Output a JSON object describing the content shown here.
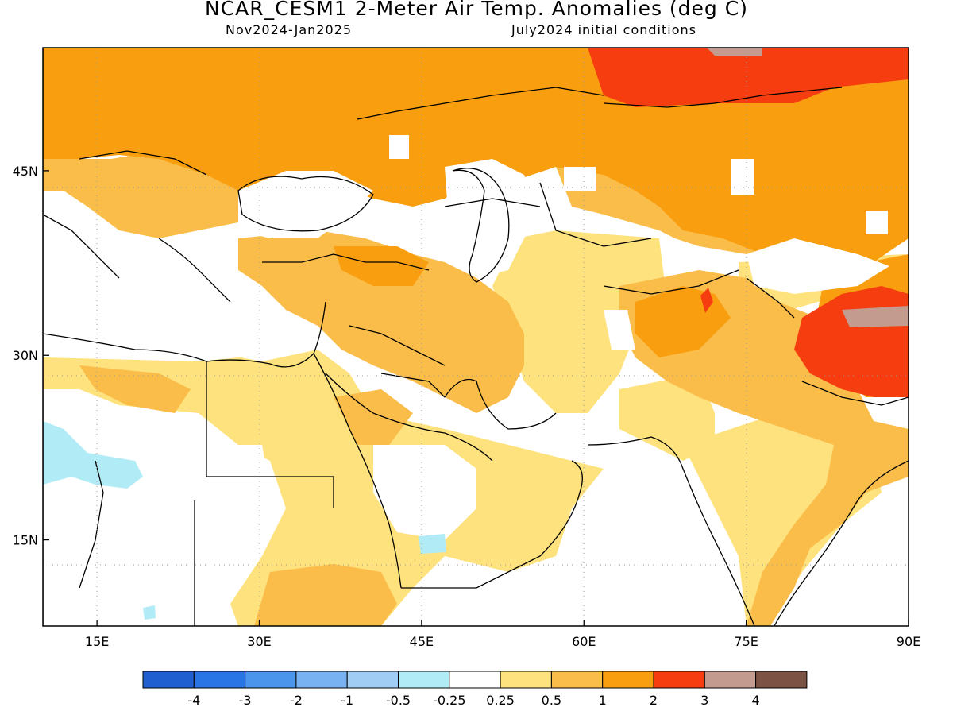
{
  "header": {
    "title": "NCAR_CESM1 2-Meter Air Temp. Anomalies (deg C)",
    "period": "Nov2024-Jan2025",
    "init": "July2024 initial conditions"
  },
  "map": {
    "lon_range": [
      10,
      90
    ],
    "lat_range": [
      8,
      55
    ],
    "lat_ticks": [
      {
        "value": 45,
        "label": "45N"
      },
      {
        "value": 30,
        "label": "30N"
      },
      {
        "value": 15,
        "label": "15N"
      }
    ],
    "lon_ticks": [
      {
        "value": 15,
        "label": "15E"
      },
      {
        "value": 30,
        "label": "30E"
      },
      {
        "value": 45,
        "label": "45E"
      },
      {
        "value": 60,
        "label": "60E"
      },
      {
        "value": 75,
        "label": "75E"
      },
      {
        "value": 90,
        "label": "90E"
      }
    ],
    "grid": "dotted"
  },
  "legend": {
    "colors": [
      "#1f5fcf",
      "#2a75e6",
      "#4b95ec",
      "#78b2f2",
      "#9fcdf4",
      "#b1ecf6",
      "#ffffff",
      "#fee27e",
      "#fbbd4a",
      "#f89e0f",
      "#f63d10",
      "#c39b8f",
      "#7b5243"
    ],
    "labels": [
      "-4",
      "-3",
      "-2",
      "-1",
      "-0.5",
      "-0.25",
      "0.25",
      "0.5",
      "1",
      "2",
      "3",
      "4"
    ]
  }
}
